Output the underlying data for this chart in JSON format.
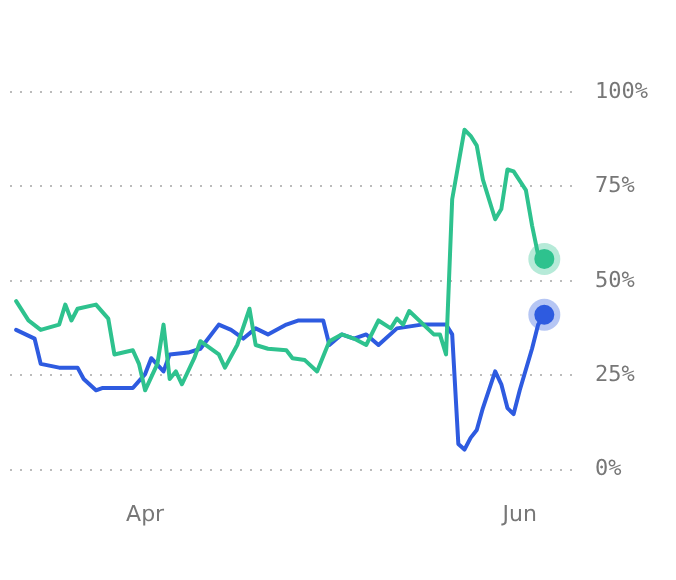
{
  "chart_data": {
    "type": "line",
    "x": [
      "--03-11",
      "--03-13",
      "--03-15",
      "--03-18",
      "--03-19",
      "--03-20",
      "--03-21",
      "--03-24",
      "--03-26",
      "--03-27",
      "--03-30",
      "--03-31",
      "--04-01",
      "--04-03",
      "--04-04",
      "--04-05",
      "--04-06",
      "--04-07",
      "--04-09",
      "--04-10",
      "--04-13",
      "--04-14",
      "--04-16",
      "--04-18",
      "--04-19",
      "--04-21",
      "--04-24",
      "--04-25",
      "--04-27",
      "--04-29",
      "--05-01",
      "--05-03",
      "--05-05",
      "--05-07",
      "--05-09",
      "--05-11",
      "--05-12",
      "--05-13",
      "--05-14",
      "--05-18",
      "--05-19",
      "--05-20",
      "--05-21",
      "--05-23",
      "--05-24",
      "--05-25",
      "--05-26",
      "--05-28",
      "--05-29",
      "--05-30",
      "--05-31",
      "--06-02",
      "--06-03",
      "--06-04",
      "--06-05"
    ],
    "series": [
      {
        "color": "#2ec28e",
        "values": [
          44.6,
          39.5,
          37,
          38.4,
          43.7,
          39.5,
          42.6,
          43.7,
          40,
          30.5,
          31.6,
          28,
          21,
          28,
          38.4,
          24,
          26,
          22.6,
          29.5,
          34,
          30.5,
          27,
          33,
          42.6,
          33,
          32,
          31.6,
          29.5,
          29,
          26,
          34,
          35.8,
          34.7,
          33,
          39.5,
          37.4,
          40,
          38.4,
          42,
          35.8,
          35.8,
          30.5,
          71.6,
          90,
          88.4,
          85.8,
          76.8,
          66.3,
          69,
          79.5,
          79,
          74,
          64.7,
          56.8,
          55.8
        ]
      },
      {
        "color": "#2e5be0",
        "x": [
          "--03-11",
          "--03-14",
          "--03-15",
          "--03-18",
          "--03-21",
          "--03-22",
          "--03-24",
          "--03-25",
          "--03-30",
          "--04-01",
          "--04-02",
          "--04-04",
          "--04-05",
          "--04-08",
          "--04-10",
          "--04-13",
          "--04-15",
          "--04-17",
          "--04-19",
          "--04-21",
          "--04-24",
          "--04-26",
          "--04-30",
          "--05-01",
          "--05-03",
          "--05-05",
          "--05-07",
          "--05-09",
          "--05-12",
          "--05-16",
          "--05-20",
          "--05-21",
          "--05-22",
          "--05-23",
          "--05-24",
          "--05-25",
          "--05-26",
          "--05-28",
          "--05-29",
          "--05-30",
          "--05-31",
          "--06-01",
          "--06-03",
          "--06-04",
          "--06-05"
        ],
        "values": [
          37,
          34.7,
          28,
          27,
          27,
          24,
          21,
          21.6,
          21.6,
          25.3,
          29.5,
          26,
          30.5,
          31,
          32,
          38.4,
          37,
          34.7,
          37.4,
          35.8,
          38.4,
          39.5,
          39.5,
          33,
          35.8,
          34.7,
          35.8,
          33,
          37.4,
          38.4,
          38.4,
          35.8,
          6.8,
          5.3,
          8.4,
          10.5,
          16.3,
          26,
          22.6,
          16.3,
          14.7,
          21,
          32,
          38.4,
          41
        ]
      }
    ],
    "xlim": [
      "--03-10",
      "--06-10"
    ],
    "xticks": [
      {
        "value": "--04-01",
        "label": "Apr"
      },
      {
        "value": "--06-01",
        "label": "Jun"
      }
    ],
    "ylim": [
      0,
      100
    ],
    "yticks": [
      {
        "value": 0,
        "label": "0%"
      },
      {
        "value": 25,
        "label": "25%"
      },
      {
        "value": 50,
        "label": "50%"
      },
      {
        "value": 75,
        "label": "75%"
      },
      {
        "value": 100,
        "label": "100%"
      }
    ],
    "grid": "y",
    "legend": false
  }
}
